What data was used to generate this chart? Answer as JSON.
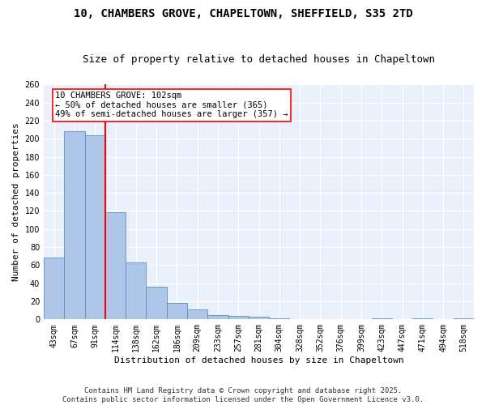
{
  "title_line1": "10, CHAMBERS GROVE, CHAPELTOWN, SHEFFIELD, S35 2TD",
  "title_line2": "Size of property relative to detached houses in Chapeltown",
  "xlabel": "Distribution of detached houses by size in Chapeltown",
  "ylabel": "Number of detached properties",
  "bar_values": [
    68,
    208,
    204,
    119,
    63,
    36,
    18,
    11,
    5,
    4,
    3,
    1,
    0,
    0,
    0,
    0,
    1,
    0,
    1,
    0,
    1
  ],
  "bar_labels": [
    "43sqm",
    "67sqm",
    "91sqm",
    "114sqm",
    "138sqm",
    "162sqm",
    "186sqm",
    "209sqm",
    "233sqm",
    "257sqm",
    "281sqm",
    "304sqm",
    "328sqm",
    "352sqm",
    "376sqm",
    "399sqm",
    "423sqm",
    "447sqm",
    "471sqm",
    "494sqm",
    "518sqm"
  ],
  "bar_color": "#aec6e8",
  "bar_edge_color": "#5a8fc2",
  "vline_x": 2.5,
  "vline_color": "red",
  "annotation_text": "10 CHAMBERS GROVE: 102sqm\n← 50% of detached houses are smaller (365)\n49% of semi-detached houses are larger (357) →",
  "annotation_box_color": "white",
  "annotation_box_edgecolor": "red",
  "ylim": [
    0,
    260
  ],
  "yticks": [
    0,
    20,
    40,
    60,
    80,
    100,
    120,
    140,
    160,
    180,
    200,
    220,
    240,
    260
  ],
  "background_color": "#eaf0fb",
  "grid_color": "white",
  "footer_line1": "Contains HM Land Registry data © Crown copyright and database right 2025.",
  "footer_line2": "Contains public sector information licensed under the Open Government Licence v3.0.",
  "title_fontsize": 10,
  "subtitle_fontsize": 9,
  "axis_label_fontsize": 8,
  "tick_fontsize": 7,
  "annotation_fontsize": 7.5,
  "footer_fontsize": 6.5
}
